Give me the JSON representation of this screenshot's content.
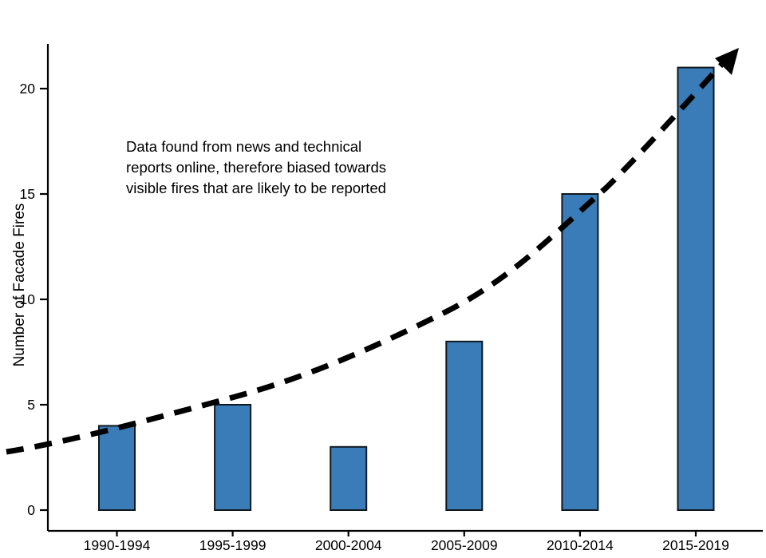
{
  "chart_data": {
    "type": "bar",
    "categories": [
      "1990-1994",
      "1995-1999",
      "2000-2004",
      "2005-2009",
      "2010-2014",
      "2015-2019"
    ],
    "values": [
      4,
      5,
      3,
      8,
      15,
      21
    ],
    "title": "",
    "xlabel": "",
    "ylabel": "Number of Facade Fires",
    "yticks": [
      0,
      5,
      10,
      15,
      20
    ],
    "ylim": [
      0,
      22
    ],
    "grid": "off",
    "legend": "none",
    "annotation_lines": [
      "Data found from news and technical",
      "reports online, therefore biased towards",
      "visible fires that are likely to be reported"
    ],
    "trend_line": {
      "style": "dashed",
      "shape": "exponential increasing curve ending in arrowhead",
      "color": "#000000"
    },
    "colors": {
      "bar_fill": "#3a7cb8",
      "bar_edge": "#101820",
      "axis": "#000000",
      "text": "#000000"
    }
  }
}
